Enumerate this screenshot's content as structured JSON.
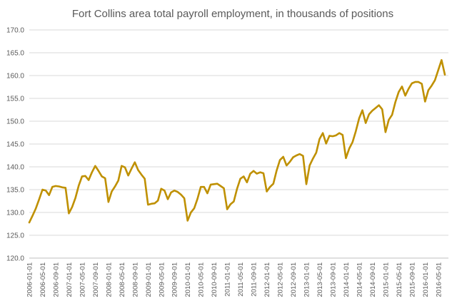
{
  "chart_data": {
    "type": "line",
    "title": "Fort Collins area total payroll employment, in thousands of positions",
    "xlabel": "",
    "ylabel": "",
    "ylim": [
      120,
      170
    ],
    "yticks": [
      "120.0",
      "125.0",
      "130.0",
      "135.0",
      "140.0",
      "145.0",
      "150.0",
      "155.0",
      "160.0",
      "165.0",
      "170.0"
    ],
    "xtick_labels": [
      "2006-01-01",
      "2006-05-01",
      "2006-09-01",
      "2007-01-01",
      "2007-05-01",
      "2007-09-01",
      "2008-01-01",
      "2008-05-01",
      "2008-09-01",
      "2009-01-01",
      "2009-05-01",
      "2009-09-01",
      "2010-01-01",
      "2010-05-01",
      "2010-09-01",
      "2011-01-01",
      "2011-05-01",
      "2011-09-01",
      "2012-01-01",
      "2012-05-01",
      "2012-09-01",
      "2013-01-01",
      "2013-05-01",
      "2013-09-01",
      "2014-01-01",
      "2014-05-01",
      "2014-09-01",
      "2015-01-01",
      "2015-05-01",
      "2015-09-01",
      "2016-01-01",
      "2016-05-01"
    ],
    "grid": true,
    "legend": "none",
    "line_color": "#BF9000",
    "x_start": "2006-01-01",
    "x_end": "2016-07-01",
    "x_frequency": "monthly",
    "series": [
      {
        "name": "",
        "values": [
          127.8,
          129.3,
          130.9,
          132.9,
          135.0,
          134.8,
          133.8,
          135.6,
          135.8,
          135.7,
          135.5,
          135.4,
          129.8,
          131.2,
          133.2,
          135.9,
          137.9,
          138.0,
          137.1,
          138.8,
          140.2,
          139.1,
          137.9,
          137.5,
          132.3,
          134.6,
          135.7,
          137.0,
          140.2,
          139.9,
          138.1,
          139.6,
          141.0,
          139.3,
          138.3,
          137.4,
          131.7,
          131.9,
          132.0,
          132.6,
          135.2,
          134.8,
          132.9,
          134.4,
          134.8,
          134.5,
          133.9,
          133.1,
          128.2,
          130.0,
          130.9,
          133.0,
          135.6,
          135.6,
          134.2,
          136.1,
          136.2,
          136.3,
          135.8,
          135.3,
          130.7,
          131.8,
          132.4,
          135.2,
          137.4,
          137.9,
          136.6,
          138.5,
          139.1,
          138.5,
          138.8,
          138.6,
          134.6,
          135.6,
          136.3,
          139.2,
          141.5,
          142.2,
          140.3,
          141.1,
          142.1,
          142.5,
          142.8,
          142.4,
          136.2,
          140.3,
          141.8,
          143.1,
          146.1,
          147.4,
          145.1,
          146.8,
          146.7,
          146.9,
          147.4,
          147.0,
          141.9,
          144.0,
          145.4,
          147.8,
          150.6,
          152.4,
          149.6,
          151.5,
          152.3,
          152.9,
          153.5,
          152.6,
          147.6,
          150.3,
          151.4,
          154.2,
          156.4,
          157.6,
          155.6,
          157.1,
          158.3,
          158.6,
          158.6,
          158.2,
          154.3,
          156.8,
          157.8,
          159.0,
          161.2,
          163.4,
          160.2
        ]
      }
    ]
  }
}
